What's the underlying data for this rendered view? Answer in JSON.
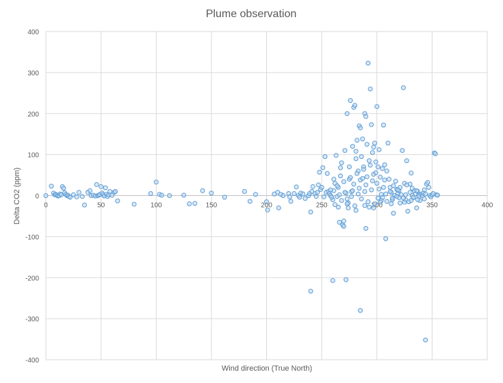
{
  "chart_data": {
    "type": "scatter",
    "title": "Plume observation",
    "xlabel": "Wind direction (True North)",
    "ylabel": "Delta CO2 (ppm)",
    "xlim": [
      0,
      400
    ],
    "ylim": [
      -400,
      400
    ],
    "xticks": [
      "0",
      "50",
      "100",
      "150",
      "200",
      "250",
      "300",
      "350",
      "400"
    ],
    "yticks": [
      "400",
      "300",
      "200",
      "100",
      "0",
      "-100",
      "-200",
      "-300",
      "-400"
    ],
    "grid": true,
    "marker_color": "#5B9BD5",
    "series": [
      {
        "points": [
          [
            0,
            0
          ],
          [
            5,
            23
          ],
          [
            7,
            6
          ],
          [
            8,
            2
          ],
          [
            9,
            3
          ],
          [
            10,
            1
          ],
          [
            11,
            -1
          ],
          [
            12,
            0
          ],
          [
            13,
            4
          ],
          [
            14,
            2
          ],
          [
            15,
            22
          ],
          [
            16,
            18
          ],
          [
            17,
            7
          ],
          [
            18,
            3
          ],
          [
            19,
            0
          ],
          [
            20,
            1
          ],
          [
            21,
            -2
          ],
          [
            22,
            -4
          ],
          [
            25,
            2
          ],
          [
            28,
            -3
          ],
          [
            30,
            8
          ],
          [
            33,
            -2
          ],
          [
            35,
            -23
          ],
          [
            38,
            8
          ],
          [
            40,
            12
          ],
          [
            41,
            0
          ],
          [
            43,
            1
          ],
          [
            45,
            -1
          ],
          [
            46,
            27
          ],
          [
            47,
            0
          ],
          [
            48,
            1
          ],
          [
            49,
            3
          ],
          [
            50,
            22
          ],
          [
            51,
            6
          ],
          [
            52,
            2
          ],
          [
            53,
            -1
          ],
          [
            54,
            19
          ],
          [
            55,
            3
          ],
          [
            56,
            -2
          ],
          [
            57,
            2
          ],
          [
            58,
            10
          ],
          [
            60,
            1
          ],
          [
            62,
            8
          ],
          [
            63,
            10
          ],
          [
            65,
            -13
          ],
          [
            80,
            -21
          ],
          [
            95,
            5
          ],
          [
            100,
            33
          ],
          [
            103,
            3
          ],
          [
            105,
            1
          ],
          [
            112,
            0
          ],
          [
            125,
            1
          ],
          [
            130,
            -20
          ],
          [
            135,
            -19
          ],
          [
            142,
            12
          ],
          [
            150,
            6
          ],
          [
            162,
            -4
          ],
          [
            180,
            10
          ],
          [
            185,
            -14
          ],
          [
            190,
            3
          ],
          [
            200,
            -15
          ],
          [
            201,
            -35
          ],
          [
            207,
            4
          ],
          [
            210,
            8
          ],
          [
            211,
            -30
          ],
          [
            213,
            3
          ],
          [
            215,
            0
          ],
          [
            220,
            5
          ],
          [
            221,
            -3
          ],
          [
            222,
            -14
          ],
          [
            225,
            5
          ],
          [
            227,
            21
          ],
          [
            229,
            0
          ],
          [
            230,
            -4
          ],
          [
            231,
            6
          ],
          [
            233,
            4
          ],
          [
            235,
            -7
          ],
          [
            238,
            0
          ],
          [
            239,
            5
          ],
          [
            240,
            -40
          ],
          [
            241,
            10
          ],
          [
            242,
            22
          ],
          [
            244,
            5
          ],
          [
            245,
            -2
          ],
          [
            246,
            8
          ],
          [
            247,
            26
          ],
          [
            248,
            57
          ],
          [
            249,
            15
          ],
          [
            250,
            20
          ],
          [
            251,
            68
          ],
          [
            252,
            -3
          ],
          [
            253,
            95
          ],
          [
            254,
            8
          ],
          [
            255,
            54
          ],
          [
            256,
            10
          ],
          [
            257,
            5
          ],
          [
            258,
            0
          ],
          [
            260,
            -10
          ],
          [
            261,
            12
          ],
          [
            262,
            30
          ],
          [
            263,
            98
          ],
          [
            264,
            -2
          ],
          [
            265,
            20
          ],
          [
            266,
            -65
          ],
          [
            267,
            68
          ],
          [
            268,
            80
          ],
          [
            269,
            -72
          ],
          [
            270,
            -75
          ],
          [
            271,
            110
          ],
          [
            272,
            -205
          ],
          [
            273,
            200
          ],
          [
            274,
            -30
          ],
          [
            275,
            40
          ],
          [
            276,
            232
          ],
          [
            277,
            10
          ],
          [
            278,
            120
          ],
          [
            279,
            215
          ],
          [
            280,
            220
          ],
          [
            281,
            90
          ],
          [
            282,
            135
          ],
          [
            283,
            60
          ],
          [
            284,
            170
          ],
          [
            285,
            165
          ],
          [
            286,
            95
          ],
          [
            287,
            138
          ],
          [
            288,
            70
          ],
          [
            289,
            200
          ],
          [
            290,
            193
          ],
          [
            291,
            125
          ],
          [
            292,
            323
          ],
          [
            293,
            85
          ],
          [
            294,
            260
          ],
          [
            295,
            173
          ],
          [
            296,
            105
          ],
          [
            297,
            118
          ],
          [
            298,
            128
          ],
          [
            299,
            82
          ],
          [
            300,
            217
          ],
          [
            301,
            70
          ],
          [
            302,
            112
          ],
          [
            303,
            45
          ],
          [
            304,
            3
          ],
          [
            305,
            -5
          ],
          [
            306,
            172
          ],
          [
            307,
            75
          ],
          [
            308,
            -105
          ],
          [
            309,
            60
          ],
          [
            310,
            128
          ],
          [
            311,
            40
          ],
          [
            312,
            20
          ],
          [
            313,
            8
          ],
          [
            314,
            -10
          ],
          [
            315,
            -43
          ],
          [
            316,
            0
          ],
          [
            317,
            35
          ],
          [
            318,
            15
          ],
          [
            319,
            5
          ],
          [
            320,
            -5
          ],
          [
            321,
            20
          ],
          [
            322,
            2
          ],
          [
            323,
            110
          ],
          [
            324,
            263
          ],
          [
            325,
            30
          ],
          [
            326,
            -10
          ],
          [
            327,
            85
          ],
          [
            328,
            -38
          ],
          [
            329,
            -15
          ],
          [
            330,
            28
          ],
          [
            331,
            55
          ],
          [
            332,
            0
          ],
          [
            333,
            -5
          ],
          [
            334,
            12
          ],
          [
            335,
            4
          ],
          [
            336,
            -30
          ],
          [
            337,
            10
          ],
          [
            338,
            2
          ],
          [
            339,
            -12
          ],
          [
            340,
            3
          ],
          [
            341,
            0
          ],
          [
            342,
            6
          ],
          [
            343,
            -8
          ],
          [
            344,
            -352
          ],
          [
            345,
            28
          ],
          [
            346,
            32
          ],
          [
            347,
            20
          ],
          [
            348,
            0
          ],
          [
            349,
            -3
          ],
          [
            350,
            2
          ],
          [
            351,
            5
          ],
          [
            352,
            104
          ],
          [
            353,
            102
          ],
          [
            354,
            2
          ],
          [
            355,
            1
          ],
          [
            240,
            -233
          ],
          [
            260,
            -207
          ],
          [
            270,
            -62
          ],
          [
            285,
            -280
          ],
          [
            290,
            -80
          ],
          [
            262,
            -22
          ],
          [
            268,
            -12
          ],
          [
            274,
            -18
          ],
          [
            280,
            -25
          ],
          [
            286,
            -8
          ],
          [
            292,
            -15
          ],
          [
            298,
            -20
          ],
          [
            304,
            -12
          ],
          [
            258,
            14
          ],
          [
            264,
            24
          ],
          [
            270,
            34
          ],
          [
            276,
            44
          ],
          [
            282,
            54
          ],
          [
            288,
            64
          ],
          [
            294,
            74
          ],
          [
            300,
            30
          ],
          [
            306,
            20
          ],
          [
            312,
            10
          ],
          [
            318,
            -2
          ],
          [
            324,
            -6
          ],
          [
            330,
            8
          ],
          [
            336,
            12
          ],
          [
            259,
            -4
          ],
          [
            266,
            2
          ],
          [
            272,
            6
          ],
          [
            278,
            12
          ],
          [
            284,
            18
          ],
          [
            290,
            26
          ],
          [
            296,
            36
          ],
          [
            302,
            16
          ],
          [
            308,
            4
          ],
          [
            314,
            -6
          ],
          [
            320,
            12
          ],
          [
            326,
            2
          ],
          [
            332,
            18
          ],
          [
            338,
            -2
          ],
          [
            344,
            4
          ],
          [
            261,
            40
          ],
          [
            267,
            48
          ],
          [
            273,
            -8
          ],
          [
            279,
            28
          ],
          [
            285,
            38
          ],
          [
            291,
            46
          ],
          [
            297,
            52
          ],
          [
            303,
            -16
          ],
          [
            309,
            -14
          ],
          [
            315,
            24
          ],
          [
            321,
            -18
          ],
          [
            327,
            26
          ],
          [
            333,
            -4
          ],
          [
            271,
            8
          ],
          [
            277,
            -2
          ],
          [
            283,
            4
          ],
          [
            289,
            10
          ],
          [
            295,
            14
          ],
          [
            301,
            -6
          ],
          [
            307,
            38
          ],
          [
            313,
            -20
          ],
          [
            319,
            14
          ],
          [
            325,
            -16
          ],
          [
            331,
            -12
          ],
          [
            337,
            -10
          ],
          [
            343,
            14
          ],
          [
            275,
            70
          ],
          [
            281,
            108
          ],
          [
            287,
            42
          ],
          [
            293,
            -28
          ],
          [
            299,
            56
          ],
          [
            305,
            66
          ],
          [
            265,
            -28
          ],
          [
            273,
            -20
          ],
          [
            281,
            -36
          ],
          [
            289,
            -24
          ],
          [
            297,
            -30
          ]
        ]
      }
    ]
  }
}
